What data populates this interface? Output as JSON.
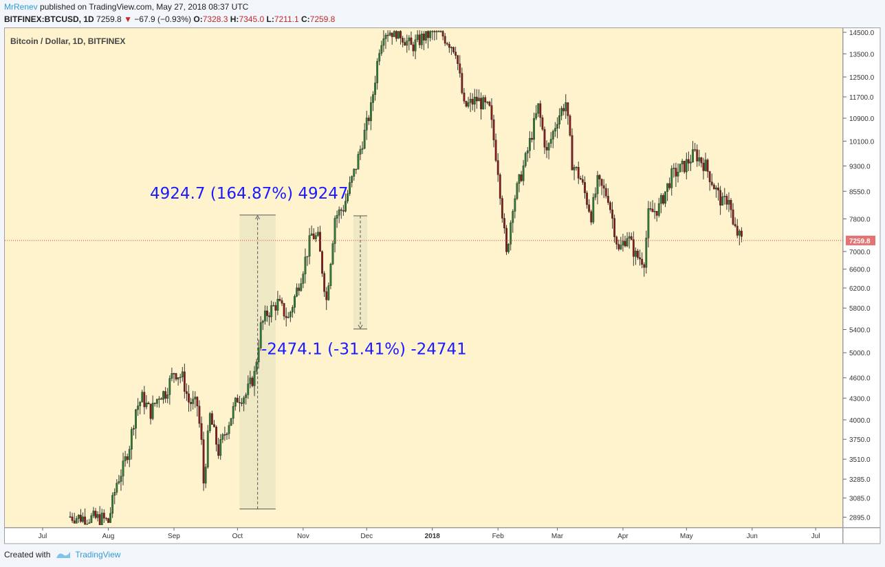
{
  "header": {
    "author": "MrRenev",
    "published_text": "published on TradingView.com, May 27, 2018 08:37 UTC",
    "symbol": "BITFINEX:BTCUSD, 1D",
    "last": "7259.8",
    "change": "−67.9 (−0.93%)",
    "o_label": "O:",
    "o_val": "7328.3",
    "h_label": "H:",
    "h_val": "7345.0",
    "l_label": "L:",
    "l_val": "7211.1",
    "c_label": "C:",
    "c_val": "7259.8"
  },
  "footer": {
    "created_with": "Created with",
    "brand": "TradingView"
  },
  "chart_data": {
    "type": "candlestick",
    "title": "Bitcoin / Dollar, 1D, BITFINEX",
    "xlabel": "",
    "ylabel": "",
    "x_ticks": [
      "Jul",
      "Aug",
      "Sep",
      "Oct",
      "Nov",
      "Dec",
      "2018",
      "Feb",
      "Mar",
      "Apr",
      "May",
      "Jun",
      "Jul"
    ],
    "y_ticks": [
      2895,
      3085,
      3285,
      3510,
      3750,
      4000,
      4300,
      4600,
      5000,
      5400,
      5800,
      6200,
      6600,
      7000,
      7800,
      8550,
      9300,
      10100,
      10900,
      11700,
      12500,
      13500,
      14500
    ],
    "y_scale": "log",
    "ylim": [
      2820,
      14600
    ],
    "last_price": 7259.8,
    "colors": {
      "up": "#2e7d32",
      "down": "#8b1a1a",
      "background": "#fff3cd",
      "measure_text": "#1a1aff",
      "price_line": "#e53935",
      "price_label_bg": "#e57373"
    },
    "close_series": [
      {
        "date": "2017-07-14",
        "close": 2900
      },
      {
        "date": "2017-07-20",
        "close": 2890
      },
      {
        "date": "2017-07-29",
        "close": 2880
      },
      {
        "date": "2017-08-01",
        "close": 2850
      },
      {
        "date": "2017-08-05",
        "close": 3250
      },
      {
        "date": "2017-08-08",
        "close": 3410
      },
      {
        "date": "2017-08-11",
        "close": 3680
      },
      {
        "date": "2017-08-14",
        "close": 4150
      },
      {
        "date": "2017-08-17",
        "close": 4300
      },
      {
        "date": "2017-08-21",
        "close": 4100
      },
      {
        "date": "2017-08-25",
        "close": 4350
      },
      {
        "date": "2017-08-28",
        "close": 4380
      },
      {
        "date": "2017-09-01",
        "close": 4700
      },
      {
        "date": "2017-09-05",
        "close": 4600
      },
      {
        "date": "2017-09-08",
        "close": 4250
      },
      {
        "date": "2017-09-12",
        "close": 4200
      },
      {
        "date": "2017-09-14",
        "close": 3700
      },
      {
        "date": "2017-09-15",
        "close": 3250
      },
      {
        "date": "2017-09-18",
        "close": 4050
      },
      {
        "date": "2017-09-22",
        "close": 3600
      },
      {
        "date": "2017-09-26",
        "close": 3900
      },
      {
        "date": "2017-10-01",
        "close": 4300
      },
      {
        "date": "2017-10-05",
        "close": 4350
      },
      {
        "date": "2017-10-09",
        "close": 4650
      },
      {
        "date": "2017-10-12",
        "close": 5450
      },
      {
        "date": "2017-10-15",
        "close": 5700
      },
      {
        "date": "2017-10-20",
        "close": 5900
      },
      {
        "date": "2017-10-25",
        "close": 5600
      },
      {
        "date": "2017-10-31",
        "close": 6450
      },
      {
        "date": "2017-11-05",
        "close": 7400
      },
      {
        "date": "2017-11-08",
        "close": 7300
      },
      {
        "date": "2017-11-12",
        "close": 5950
      },
      {
        "date": "2017-11-16",
        "close": 7850
      },
      {
        "date": "2017-11-20",
        "close": 8100
      },
      {
        "date": "2017-11-26",
        "close": 9300
      },
      {
        "date": "2017-11-29",
        "close": 10100
      },
      {
        "date": "2017-12-03",
        "close": 11250
      },
      {
        "date": "2017-12-07",
        "close": 13800
      },
      {
        "date": "2017-12-09",
        "close": 14550
      },
      {
        "date": "2017-12-16",
        "close": 14550
      },
      {
        "date": "2017-12-22",
        "close": 13800
      },
      {
        "date": "2017-12-28",
        "close": 14300
      },
      {
        "date": "2018-01-04",
        "close": 14550
      },
      {
        "date": "2018-01-12",
        "close": 13700
      },
      {
        "date": "2018-01-16",
        "close": 11300
      },
      {
        "date": "2018-01-22",
        "close": 11600
      },
      {
        "date": "2018-01-28",
        "close": 11200
      },
      {
        "date": "2018-02-01",
        "close": 9200
      },
      {
        "date": "2018-02-05",
        "close": 6900
      },
      {
        "date": "2018-02-08",
        "close": 8200
      },
      {
        "date": "2018-02-14",
        "close": 9500
      },
      {
        "date": "2018-02-20",
        "close": 11300
      },
      {
        "date": "2018-02-24",
        "close": 9700
      },
      {
        "date": "2018-03-01",
        "close": 10900
      },
      {
        "date": "2018-03-05",
        "close": 11500
      },
      {
        "date": "2018-03-08",
        "close": 9400
      },
      {
        "date": "2018-03-12",
        "close": 8900
      },
      {
        "date": "2018-03-17",
        "close": 7900
      },
      {
        "date": "2018-03-20",
        "close": 8800
      },
      {
        "date": "2018-03-25",
        "close": 8400
      },
      {
        "date": "2018-03-30",
        "close": 7000
      },
      {
        "date": "2018-04-03",
        "close": 7400
      },
      {
        "date": "2018-04-07",
        "close": 6900
      },
      {
        "date": "2018-04-11",
        "close": 6800
      },
      {
        "date": "2018-04-13",
        "close": 7900
      },
      {
        "date": "2018-04-18",
        "close": 8100
      },
      {
        "date": "2018-04-24",
        "close": 9000
      },
      {
        "date": "2018-04-30",
        "close": 9300
      },
      {
        "date": "2018-05-05",
        "close": 9700
      },
      {
        "date": "2018-05-10",
        "close": 9300
      },
      {
        "date": "2018-05-14",
        "close": 8700
      },
      {
        "date": "2018-05-18",
        "close": 8200
      },
      {
        "date": "2018-05-21",
        "close": 8400
      },
      {
        "date": "2018-05-23",
        "close": 7600
      },
      {
        "date": "2018-05-27",
        "close": 7259.8
      }
    ],
    "measures": [
      {
        "label": "4924.7 (164.87%) 49247",
        "from_date": "2017-10-02",
        "to_date": "2017-10-19",
        "from_price": 2975,
        "to_price": 7900
      },
      {
        "label": "-2474.1 (-31.41%) -24741",
        "from_date": "2017-11-28",
        "to_date": "2017-11-28",
        "from_price": 7880,
        "to_price": 5410
      }
    ]
  }
}
